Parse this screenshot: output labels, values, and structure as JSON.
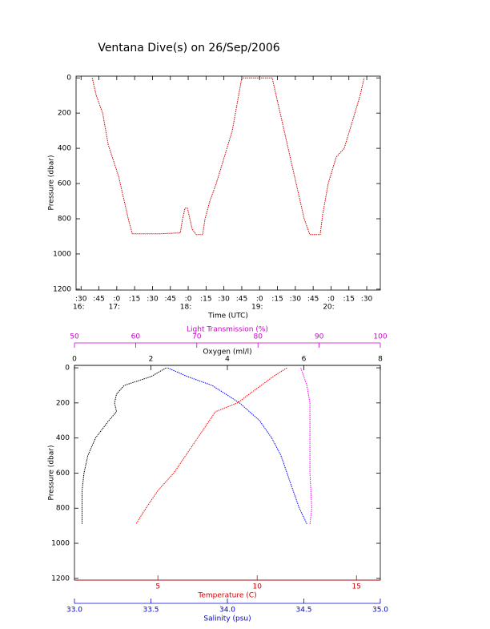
{
  "chart_data": [
    {
      "type": "line",
      "title": "Ventana Dive(s) on 26/Sep/2006",
      "x_label": "Time (UTC)",
      "y_label": "Pressure (dbar)",
      "xlim": [
        16.43,
        20.69
      ],
      "ylim": [
        -10,
        1205
      ],
      "yreverse": true,
      "yticks": [
        0,
        200,
        400,
        600,
        800,
        1000,
        1200
      ],
      "xticks": [
        {
          "value": 16.5,
          "label": ":30"
        },
        {
          "value": 16.75,
          "label": ":45"
        },
        {
          "value": 17,
          "label": ":0"
        },
        {
          "value": 17.25,
          "label": ":15"
        },
        {
          "value": 17.5,
          "label": ":30"
        },
        {
          "value": 17.75,
          "label": ":45"
        },
        {
          "value": 18,
          "label": ":0"
        },
        {
          "value": 18.25,
          "label": ":15"
        },
        {
          "value": 18.5,
          "label": ":30"
        },
        {
          "value": 18.75,
          "label": ":45"
        },
        {
          "value": 19,
          "label": ":0"
        },
        {
          "value": 19.25,
          "label": ":15"
        },
        {
          "value": 19.5,
          "label": ":30"
        },
        {
          "value": 19.75,
          "label": ":45"
        },
        {
          "value": 20,
          "label": ":0"
        },
        {
          "value": 20.25,
          "label": ":15"
        },
        {
          "value": 20.5,
          "label": ":30"
        }
      ],
      "xticks_hours": [
        {
          "value": 16.5,
          "label": "16:"
        },
        {
          "value": 17,
          "label": "17:"
        },
        {
          "value": 18,
          "label": "18:"
        },
        {
          "value": 19,
          "label": "19:"
        },
        {
          "value": 20,
          "label": "20:"
        }
      ],
      "color": "#cc0000",
      "x": [
        16.657,
        16.713,
        16.802,
        16.881,
        17.026,
        17.161,
        17.217,
        17.609,
        17.889,
        17.922,
        17.956,
        17.989,
        18.057,
        18.113,
        18.202,
        18.236,
        18.303,
        18.393,
        18.505,
        18.617,
        18.706,
        18.751,
        19.176,
        19.288,
        19.4,
        19.512,
        19.624,
        19.703,
        19.848,
        19.882,
        19.96,
        20.072,
        20.184,
        20.296,
        20.408,
        20.464
      ],
      "values": [
        0,
        100,
        200,
        380,
        560,
        800,
        885,
        885,
        880,
        800,
        740,
        740,
        860,
        890,
        890,
        800,
        700,
        600,
        450,
        300,
        100,
        0,
        0,
        200,
        400,
        600,
        800,
        890,
        890,
        780,
        600,
        450,
        400,
        250,
        100,
        0
      ]
    },
    {
      "type": "profile",
      "y_label": "Pressure (dbar)",
      "ylim": [
        -14,
        1210
      ],
      "yreverse": true,
      "yticks": [
        0,
        200,
        400,
        600,
        800,
        1000,
        1200
      ],
      "xaxes": [
        {
          "label": "Oxygen (ml/l)",
          "color": "#000000",
          "position": "top",
          "xlim": [
            0,
            8
          ],
          "xticks": [
            0,
            2,
            4,
            6,
            8
          ]
        },
        {
          "label": "Light Transmission (%)",
          "color": "#cc00cc",
          "position": "top",
          "xlim": [
            50,
            100
          ],
          "xticks": [
            50,
            60,
            70,
            80,
            90,
            100
          ]
        },
        {
          "label": "Temperature (C)",
          "color": "#cc0000",
          "position": "bottom",
          "xlim": [
            0.8,
            16.2
          ],
          "xticks": [
            5,
            10,
            15
          ]
        },
        {
          "label": "Salinity (psu)",
          "color": "#0000cc",
          "position": "bottom",
          "xlim": [
            33,
            35
          ],
          "xticks": [
            {
              "value": 33,
              "label": "33.0"
            },
            33.5,
            {
              "value": 34,
              "label": "34.0"
            },
            34.5,
            {
              "value": 35,
              "label": "35.0"
            }
          ]
        }
      ],
      "series": [
        {
          "axis": 0,
          "color": "#000000",
          "x": [
            2.4,
            2.0,
            1.3,
            1.1,
            1.05,
            1.1,
            0.9,
            0.55,
            0.35,
            0.25,
            0.2,
            0.2,
            0.2
          ],
          "values": [
            0,
            50,
            100,
            150,
            200,
            250,
            300,
            400,
            500,
            600,
            700,
            800,
            890
          ]
        },
        {
          "axis": 1,
          "color": "#ff00ff",
          "x": [
            87,
            88,
            88.5,
            88.5,
            88.5,
            88.8,
            88.5
          ],
          "values": [
            0,
            100,
            200,
            400,
            600,
            800,
            890
          ]
        },
        {
          "axis": 2,
          "color": "#ff0000",
          "x": [
            11.5,
            10.8,
            9.6,
            9.0,
            7.9,
            7.0,
            6.4,
            5.8,
            5.0,
            4.4,
            3.9
          ],
          "values": [
            0,
            50,
            150,
            200,
            250,
            400,
            500,
            600,
            700,
            800,
            890
          ]
        },
        {
          "axis": 3,
          "color": "#0000ff",
          "x": [
            33.61,
            33.74,
            33.9,
            34.08,
            34.21,
            34.29,
            34.35,
            34.39,
            34.43,
            34.47,
            34.52
          ],
          "values": [
            0,
            50,
            100,
            200,
            300,
            400,
            500,
            600,
            700,
            800,
            890
          ]
        }
      ]
    }
  ]
}
